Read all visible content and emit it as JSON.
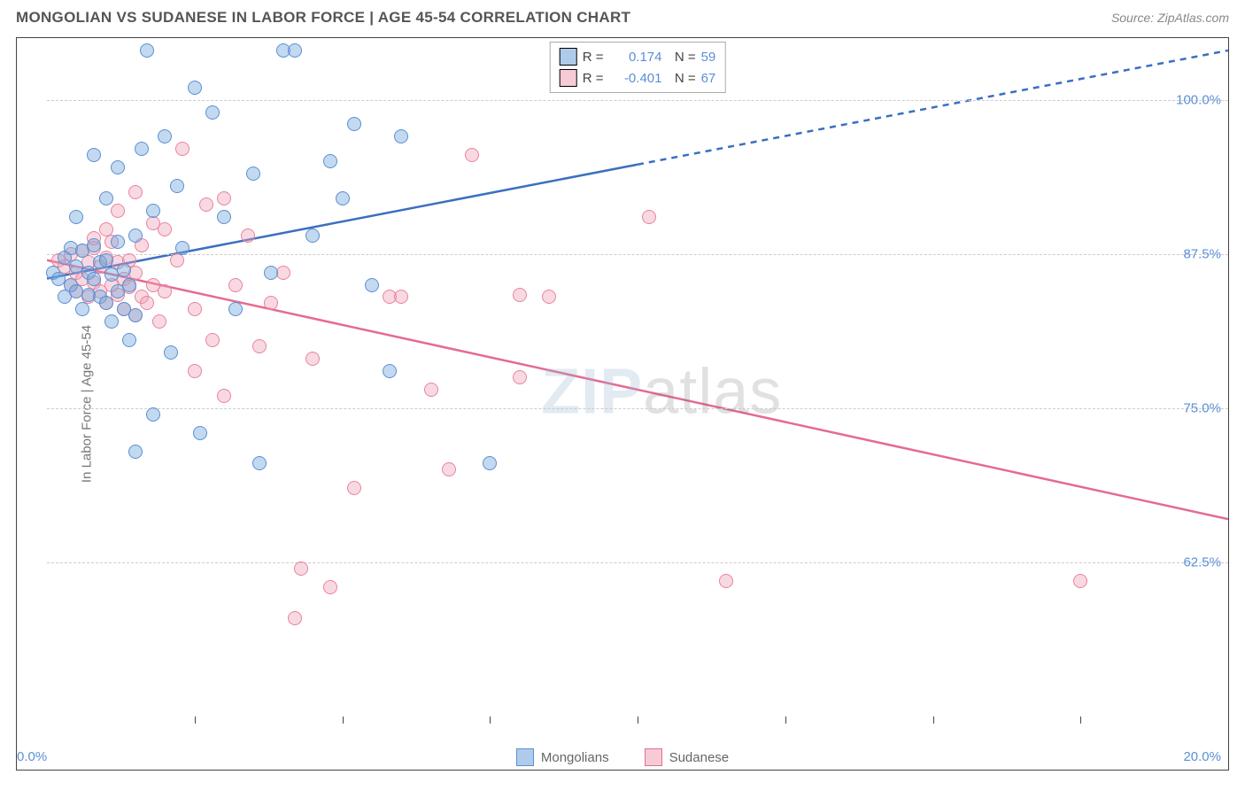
{
  "title": "MONGOLIAN VS SUDANESE IN LABOR FORCE | AGE 45-54 CORRELATION CHART",
  "source": "Source: ZipAtlas.com",
  "watermark_bold": "ZIP",
  "watermark_thin": "atlas",
  "chart": {
    "type": "scatter",
    "xlim": [
      0,
      20
    ],
    "ylim": [
      50,
      105
    ],
    "x_ticks": [
      2.5,
      5,
      7.5,
      10,
      12.5,
      15,
      17.5,
      20
    ],
    "x_tick_label_min": "0.0%",
    "x_tick_label_max": "20.0%",
    "y_grid": [
      {
        "v": 62.5,
        "label": "62.5%"
      },
      {
        "v": 75.0,
        "label": "75.0%"
      },
      {
        "v": 87.5,
        "label": "87.5%"
      },
      {
        "v": 100.0,
        "label": "100.0%"
      }
    ],
    "ylabel": "In Labor Force | Age 45-54",
    "series_blue": {
      "name": "Mongolians",
      "color_fill": "rgba(120,170,220,0.45)",
      "color_stroke": "#5b8fd6",
      "R": "0.174",
      "N": "59",
      "trend": {
        "x1": 0,
        "y1": 85.5,
        "x2": 20,
        "y2": 104,
        "solid_until_x": 10,
        "color": "#3a6fc0",
        "width": 2.5
      },
      "points": [
        [
          0.1,
          86
        ],
        [
          0.2,
          85.5
        ],
        [
          0.3,
          84
        ],
        [
          0.3,
          87.2
        ],
        [
          0.4,
          85
        ],
        [
          0.4,
          88
        ],
        [
          0.5,
          84.5
        ],
        [
          0.5,
          86.5
        ],
        [
          0.6,
          83
        ],
        [
          0.6,
          87.8
        ],
        [
          0.7,
          84.2
        ],
        [
          0.7,
          86
        ],
        [
          0.8,
          85.5
        ],
        [
          0.8,
          88.2
        ],
        [
          0.9,
          84
        ],
        [
          0.9,
          86.8
        ],
        [
          1.0,
          83.5
        ],
        [
          1.0,
          87
        ],
        [
          1.1,
          82
        ],
        [
          1.1,
          85.8
        ],
        [
          1.2,
          84.5
        ],
        [
          1.2,
          88.5
        ],
        [
          1.3,
          83
        ],
        [
          1.3,
          86.2
        ],
        [
          1.4,
          80.5
        ],
        [
          1.4,
          85
        ],
        [
          1.5,
          82.5
        ],
        [
          1.5,
          89
        ],
        [
          1.6,
          96
        ],
        [
          1.7,
          104
        ],
        [
          1.8,
          91
        ],
        [
          2.0,
          97
        ],
        [
          2.1,
          79.5
        ],
        [
          2.2,
          93
        ],
        [
          2.3,
          88
        ],
        [
          2.5,
          101
        ],
        [
          2.6,
          73
        ],
        [
          2.8,
          99
        ],
        [
          3.0,
          90.5
        ],
        [
          3.2,
          83
        ],
        [
          3.5,
          94
        ],
        [
          3.6,
          70.5
        ],
        [
          3.8,
          86
        ],
        [
          4.0,
          104
        ],
        [
          4.2,
          104
        ],
        [
          4.5,
          89
        ],
        [
          4.8,
          95
        ],
        [
          5.0,
          92
        ],
        [
          5.2,
          98
        ],
        [
          5.5,
          85
        ],
        [
          5.8,
          78
        ],
        [
          6.0,
          97
        ],
        [
          7.5,
          70.5
        ],
        [
          0.5,
          90.5
        ],
        [
          1.0,
          92
        ],
        [
          1.2,
          94.5
        ],
        [
          0.8,
          95.5
        ],
        [
          1.5,
          71.5
        ],
        [
          1.8,
          74.5
        ]
      ]
    },
    "series_pink": {
      "name": "Sudanese",
      "color_fill": "rgba(240,160,180,0.40)",
      "color_stroke": "#e8829f",
      "R": "-0.401",
      "N": "67",
      "trend": {
        "x1": 0,
        "y1": 87,
        "x2": 20,
        "y2": 66,
        "solid_until_x": 20,
        "color": "#e56b8f",
        "width": 2.5
      },
      "points": [
        [
          0.2,
          87
        ],
        [
          0.3,
          86.5
        ],
        [
          0.4,
          85
        ],
        [
          0.4,
          87.5
        ],
        [
          0.5,
          84.5
        ],
        [
          0.5,
          86
        ],
        [
          0.6,
          85.5
        ],
        [
          0.6,
          87.8
        ],
        [
          0.7,
          84
        ],
        [
          0.7,
          86.8
        ],
        [
          0.8,
          85.2
        ],
        [
          0.8,
          88
        ],
        [
          0.9,
          84.5
        ],
        [
          0.9,
          86.5
        ],
        [
          1.0,
          83.5
        ],
        [
          1.0,
          87.2
        ],
        [
          1.1,
          85
        ],
        [
          1.1,
          88.5
        ],
        [
          1.2,
          84.2
        ],
        [
          1.2,
          86.8
        ],
        [
          1.3,
          83
        ],
        [
          1.3,
          85.5
        ],
        [
          1.4,
          84.8
        ],
        [
          1.4,
          87
        ],
        [
          1.5,
          82.5
        ],
        [
          1.5,
          86
        ],
        [
          1.6,
          84
        ],
        [
          1.6,
          88.2
        ],
        [
          1.7,
          83.5
        ],
        [
          1.8,
          85
        ],
        [
          1.8,
          90
        ],
        [
          1.9,
          82
        ],
        [
          2.0,
          84.5
        ],
        [
          2.0,
          89.5
        ],
        [
          2.2,
          87
        ],
        [
          2.3,
          96
        ],
        [
          2.5,
          83
        ],
        [
          2.7,
          91.5
        ],
        [
          2.8,
          80.5
        ],
        [
          3.0,
          92
        ],
        [
          3.2,
          85
        ],
        [
          3.4,
          89
        ],
        [
          3.6,
          80
        ],
        [
          3.8,
          83.5
        ],
        [
          4.0,
          86
        ],
        [
          4.2,
          58
        ],
        [
          4.3,
          62
        ],
        [
          4.5,
          79
        ],
        [
          4.8,
          60.5
        ],
        [
          5.2,
          68.5
        ],
        [
          5.8,
          84
        ],
        [
          6.0,
          84
        ],
        [
          6.5,
          76.5
        ],
        [
          6.8,
          70
        ],
        [
          7.2,
          95.5
        ],
        [
          8.0,
          84.2
        ],
        [
          8.0,
          77.5
        ],
        [
          8.5,
          84
        ],
        [
          10.2,
          90.5
        ],
        [
          11.5,
          61
        ],
        [
          17.5,
          61
        ],
        [
          1.0,
          89.5
        ],
        [
          1.2,
          91
        ],
        [
          1.5,
          92.5
        ],
        [
          0.8,
          88.8
        ],
        [
          2.5,
          78
        ],
        [
          3.0,
          76
        ]
      ]
    },
    "bottom_legend": [
      {
        "swatch": "blue",
        "label": "Mongolians"
      },
      {
        "swatch": "pink",
        "label": "Sudanese"
      }
    ]
  }
}
